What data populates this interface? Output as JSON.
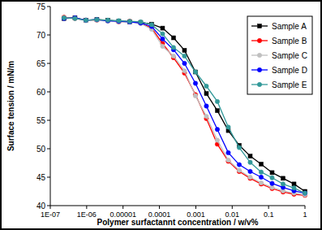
{
  "chart_data": {
    "type": "line",
    "x_label": "Polymer surfactannt concentration / w/v%",
    "y_label": "Surface tension / mN/m",
    "log": "x",
    "grid": false,
    "legend": "top-right",
    "xlim": [
      1e-07,
      1
    ],
    "xticks": [
      {
        "value": 1e-07,
        "label": "1E-07"
      },
      {
        "value": 1e-06,
        "label": "1E-06"
      },
      1e-05,
      0.0001,
      0.001,
      0.01,
      0.1,
      1
    ],
    "ylim": [
      40,
      75
    ],
    "yticks": [
      40,
      45,
      50,
      55,
      60,
      65,
      70,
      75
    ],
    "x": [
      2.384e-07,
      4.768e-07,
      9.537e-07,
      1.907e-06,
      3.815e-06,
      7.629e-06,
      1.526e-05,
      3.052e-05,
      6.104e-05,
      0.0001221,
      0.0002441,
      0.0004883,
      0.0009766,
      0.001953,
      0.003906,
      0.0078125,
      0.015625,
      0.03125,
      0.0625,
      0.125,
      0.25,
      0.5,
      1
    ],
    "series": [
      {
        "name": "Sample A",
        "color": "#000000",
        "marker": "square",
        "line_style": "solid",
        "values": [
          72.9,
          73.0,
          72.6,
          72.7,
          72.6,
          72.4,
          72.3,
          72.2,
          71.9,
          71.2,
          69.5,
          67.3,
          63.5,
          59.7,
          56.7,
          53.2,
          50.6,
          48.7,
          47.3,
          45.8,
          44.8,
          43.8,
          42.5
        ]
      },
      {
        "name": "Sample B",
        "color": "#ff0000",
        "marker": "circle",
        "line_style": "solid",
        "values": [
          73.1,
          72.9,
          72.6,
          72.6,
          72.5,
          72.3,
          72.4,
          72.1,
          71.2,
          68.5,
          66.0,
          63.3,
          59.5,
          55.3,
          50.8,
          47.8,
          46.0,
          44.8,
          43.8,
          43.0,
          42.4,
          42.0,
          41.8
        ]
      },
      {
        "name": "Sample C",
        "color": "#c0c0c0",
        "marker": "circle",
        "line_style": "solid",
        "values": [
          73.0,
          72.9,
          72.5,
          72.6,
          72.4,
          72.3,
          72.3,
          72.0,
          71.0,
          68.0,
          66.3,
          63.7,
          59.3,
          55.7,
          51.5,
          48.0,
          46.2,
          45.0,
          44.0,
          43.2,
          42.6,
          42.2,
          41.9
        ]
      },
      {
        "name": "Sample D",
        "color": "#0000ff",
        "marker": "circle",
        "line_style": "solid",
        "values": [
          72.9,
          73.0,
          72.6,
          72.7,
          72.5,
          72.4,
          72.3,
          72.1,
          71.5,
          69.3,
          67.4,
          65.0,
          61.5,
          57.5,
          53.4,
          49.3,
          47.2,
          46.0,
          45.0,
          43.9,
          43.2,
          42.6,
          42.2
        ]
      },
      {
        "name": "Sample E",
        "color": "#339999",
        "marker": "circle",
        "line_style": "solid",
        "values": [
          73.0,
          72.9,
          72.6,
          72.7,
          72.6,
          72.5,
          72.4,
          72.3,
          71.8,
          70.2,
          67.8,
          66.3,
          63.5,
          61.0,
          58.3,
          53.8,
          50.2,
          47.6,
          45.9,
          44.9,
          43.8,
          43.1,
          42.2
        ]
      }
    ]
  }
}
